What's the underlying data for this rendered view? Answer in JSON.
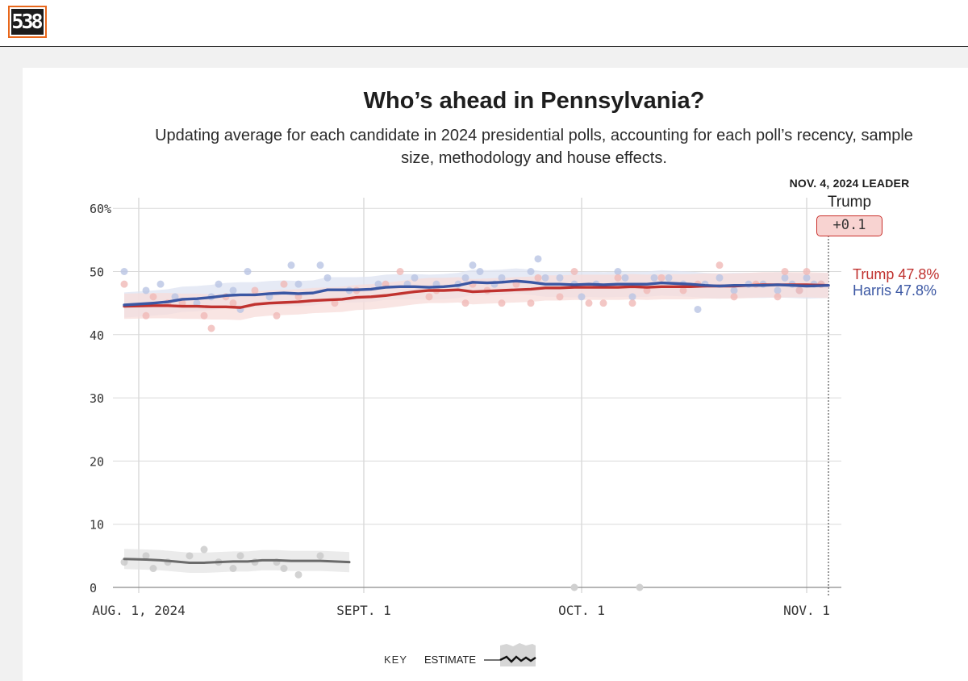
{
  "site": {
    "logo_text": "538",
    "logo_color": "#e8671b"
  },
  "header": {
    "title": "Who’s ahead in Pennsylvania?",
    "subtitle": "Updating average for each candidate in 2024 presidential polls, accounting for each poll’s recency, sample size, methodology and house effects."
  },
  "leader": {
    "heading": "NOV. 4, 2024 LEADER",
    "name": "Trump",
    "margin": "+0.1"
  },
  "series_labels": {
    "trump": "Trump 47.8%",
    "harris": "Harris 47.8%"
  },
  "key": {
    "label": "KEY",
    "estimate": "ESTIMATE"
  },
  "colors": {
    "trump": "#c0322f",
    "harris": "#3b57a3",
    "other": "#6b6b6b"
  },
  "chart_data": {
    "type": "line",
    "title": "Who’s ahead in Pennsylvania?",
    "ylim": [
      0,
      60
    ],
    "xlim_days": [
      -2,
      95
    ],
    "y_ticks": [
      0,
      10,
      20,
      30,
      40,
      50,
      60
    ],
    "y_tick_labels": [
      "0",
      "10",
      "20",
      "30",
      "40",
      "50",
      "60%"
    ],
    "x_tick_days": [
      0,
      31,
      61,
      92
    ],
    "x_tick_labels": [
      "AUG. 1, 2024",
      "SEPT. 1",
      "OCT. 1",
      "NOV. 1"
    ],
    "grid": true,
    "leader_marker_day": 95,
    "series": [
      {
        "name": "Harris",
        "key": "harris",
        "color": "#3b57a3",
        "end_value": 47.8,
        "x": [
          -2,
          2,
          4,
          6,
          8,
          10,
          12,
          14,
          16,
          18,
          20,
          22,
          24,
          26,
          28,
          30,
          32,
          34,
          36,
          38,
          40,
          42,
          44,
          46,
          48,
          50,
          52,
          54,
          56,
          58,
          60,
          62,
          64,
          66,
          68,
          70,
          72,
          74,
          76,
          78,
          80,
          82,
          84,
          86,
          88,
          90,
          92,
          95
        ],
        "y": [
          44.7,
          45.0,
          45.2,
          45.6,
          45.7,
          45.9,
          46.2,
          46.3,
          46.3,
          46.5,
          46.6,
          46.5,
          46.6,
          47.1,
          47.1,
          47.1,
          47.2,
          47.5,
          47.6,
          47.6,
          47.5,
          47.6,
          47.8,
          48.3,
          48.2,
          48.3,
          48.5,
          48.3,
          48.0,
          48.0,
          47.9,
          48.0,
          47.9,
          48.0,
          48.0,
          48.0,
          48.2,
          48.1,
          48.0,
          47.8,
          47.7,
          47.8,
          47.8,
          47.8,
          47.9,
          47.8,
          47.7,
          47.8
        ]
      },
      {
        "name": "Trump",
        "key": "trump",
        "color": "#c0322f",
        "end_value": 47.8,
        "x": [
          -2,
          2,
          4,
          6,
          8,
          10,
          12,
          14,
          16,
          18,
          20,
          22,
          24,
          26,
          28,
          30,
          32,
          34,
          36,
          38,
          40,
          42,
          44,
          46,
          48,
          50,
          52,
          54,
          56,
          58,
          60,
          62,
          64,
          66,
          68,
          70,
          72,
          74,
          76,
          78,
          80,
          82,
          84,
          86,
          88,
          90,
          92,
          95
        ],
        "y": [
          44.5,
          44.6,
          44.6,
          44.5,
          44.5,
          44.4,
          44.4,
          44.3,
          44.8,
          45.0,
          45.1,
          45.2,
          45.4,
          45.5,
          45.6,
          45.9,
          46.0,
          46.2,
          46.5,
          46.8,
          47.0,
          47.0,
          47.1,
          46.8,
          46.9,
          47.0,
          47.1,
          47.2,
          47.4,
          47.4,
          47.5,
          47.5,
          47.5,
          47.5,
          47.6,
          47.5,
          47.6,
          47.6,
          47.6,
          47.7,
          47.7,
          47.7,
          47.8,
          47.9,
          47.9,
          47.9,
          47.9,
          47.8
        ]
      },
      {
        "name": "Other",
        "key": "other",
        "color": "#6b6b6b",
        "x": [
          -2,
          1,
          3,
          5,
          7,
          9,
          11,
          13,
          15,
          17,
          19,
          21,
          23,
          25,
          27,
          29
        ],
        "y": [
          4.5,
          4.4,
          4.3,
          4.1,
          3.9,
          3.9,
          4.0,
          4.1,
          4.1,
          4.3,
          4.3,
          4.2,
          4.2,
          4.2,
          4.1,
          4.0
        ]
      }
    ],
    "polls": {
      "harris": [
        [
          -2,
          50
        ],
        [
          1,
          47
        ],
        [
          3,
          48
        ],
        [
          5,
          46
        ],
        [
          8,
          45
        ],
        [
          10,
          46
        ],
        [
          11,
          48
        ],
        [
          13,
          47
        ],
        [
          14,
          44
        ],
        [
          15,
          50
        ],
        [
          18,
          46
        ],
        [
          21,
          51
        ],
        [
          22,
          48
        ],
        [
          25,
          51
        ],
        [
          26,
          49
        ],
        [
          29,
          47
        ],
        [
          33,
          48
        ],
        [
          37,
          48
        ],
        [
          38,
          49
        ],
        [
          41,
          48
        ],
        [
          44,
          48
        ],
        [
          45,
          49
        ],
        [
          46,
          51
        ],
        [
          47,
          50
        ],
        [
          49,
          48
        ],
        [
          50,
          49
        ],
        [
          54,
          50
        ],
        [
          55,
          52
        ],
        [
          56,
          49
        ],
        [
          58,
          49
        ],
        [
          60,
          48
        ],
        [
          61,
          46
        ],
        [
          63,
          48
        ],
        [
          66,
          50
        ],
        [
          67,
          49
        ],
        [
          68,
          46
        ],
        [
          71,
          49
        ],
        [
          73,
          49
        ],
        [
          75,
          48
        ],
        [
          77,
          44
        ],
        [
          78,
          48
        ],
        [
          80,
          49
        ],
        [
          82,
          47
        ],
        [
          84,
          48
        ],
        [
          86,
          48
        ],
        [
          88,
          47
        ],
        [
          89,
          49
        ],
        [
          90,
          48
        ],
        [
          91,
          47
        ],
        [
          92,
          49
        ],
        [
          93,
          48
        ],
        [
          94,
          48
        ]
      ],
      "trump": [
        [
          -2,
          48
        ],
        [
          1,
          43
        ],
        [
          2,
          46
        ],
        [
          4,
          45
        ],
        [
          6,
          45
        ],
        [
          9,
          43
        ],
        [
          10,
          41
        ],
        [
          12,
          46
        ],
        [
          13,
          45
        ],
        [
          16,
          47
        ],
        [
          19,
          43
        ],
        [
          20,
          48
        ],
        [
          22,
          46
        ],
        [
          27,
          45
        ],
        [
          30,
          47
        ],
        [
          34,
          48
        ],
        [
          36,
          50
        ],
        [
          40,
          46
        ],
        [
          41,
          47
        ],
        [
          45,
          45
        ],
        [
          46,
          48
        ],
        [
          48,
          47
        ],
        [
          50,
          45
        ],
        [
          52,
          48
        ],
        [
          54,
          45
        ],
        [
          55,
          49
        ],
        [
          58,
          46
        ],
        [
          60,
          50
        ],
        [
          62,
          45
        ],
        [
          64,
          45
        ],
        [
          66,
          49
        ],
        [
          68,
          45
        ],
        [
          70,
          47
        ],
        [
          72,
          49
        ],
        [
          75,
          47
        ],
        [
          77,
          48
        ],
        [
          80,
          51
        ],
        [
          82,
          46
        ],
        [
          85,
          48
        ],
        [
          88,
          46
        ],
        [
          89,
          50
        ],
        [
          91,
          47
        ],
        [
          92,
          50
        ],
        [
          94,
          48
        ]
      ],
      "other": [
        [
          -2,
          4
        ],
        [
          1,
          5
        ],
        [
          2,
          3
        ],
        [
          4,
          4
        ],
        [
          7,
          5
        ],
        [
          9,
          6
        ],
        [
          11,
          4
        ],
        [
          13,
          3
        ],
        [
          14,
          5
        ],
        [
          16,
          4
        ],
        [
          19,
          4
        ],
        [
          20,
          3
        ],
        [
          22,
          2
        ],
        [
          25,
          5
        ]
      ],
      "zero_markers": [
        [
          60,
          0
        ],
        [
          69,
          0
        ]
      ]
    }
  }
}
